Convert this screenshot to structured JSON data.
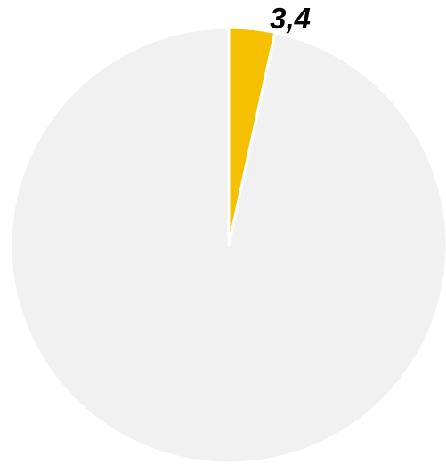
{
  "chart_data": {
    "type": "pie",
    "values": [
      3.4,
      96.6
    ],
    "labels": [
      "3,4",
      ""
    ],
    "colors": [
      "#f5c000",
      "#f1f1f1"
    ],
    "start_angle_deg": 0,
    "direction": "clockwise",
    "separator_color": "#ffffff",
    "legend": "none"
  }
}
